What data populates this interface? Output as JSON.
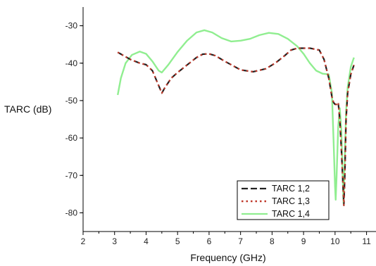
{
  "chart_data": {
    "type": "line",
    "xlabel": "Frequency (GHz)",
    "ylabel": "TARC (dB)",
    "xlim": [
      2,
      11.3
    ],
    "ylim": [
      -85,
      -25
    ],
    "xticks": [
      "2",
      "3",
      "4",
      "5",
      "6",
      "7",
      "8",
      "9",
      "10",
      "11"
    ],
    "yticks": [
      "-30",
      "-40",
      "-50",
      "-60",
      "-70",
      "-80"
    ],
    "legend_position": "bottom-right",
    "series": [
      {
        "name": "TARC 1,2",
        "color": "#222222",
        "style": "dash",
        "points": [
          [
            3.1,
            -37.1
          ],
          [
            3.5,
            -39.0
          ],
          [
            3.8,
            -40.0
          ],
          [
            4.0,
            -40.4
          ],
          [
            4.2,
            -42.0
          ],
          [
            4.4,
            -46.0
          ],
          [
            4.5,
            -48.0
          ],
          [
            4.6,
            -46.5
          ],
          [
            4.8,
            -44.0
          ],
          [
            5.0,
            -42.5
          ],
          [
            5.3,
            -40.5
          ],
          [
            5.6,
            -38.5
          ],
          [
            5.8,
            -37.6
          ],
          [
            6.0,
            -37.5
          ],
          [
            6.2,
            -38.0
          ],
          [
            6.5,
            -39.5
          ],
          [
            7.0,
            -41.8
          ],
          [
            7.4,
            -42.3
          ],
          [
            7.8,
            -41.5
          ],
          [
            8.1,
            -40.0
          ],
          [
            8.4,
            -38.0
          ],
          [
            8.6,
            -36.5
          ],
          [
            8.8,
            -36.0
          ],
          [
            9.2,
            -36.0
          ],
          [
            9.5,
            -36.5
          ],
          [
            9.65,
            -39.0
          ],
          [
            9.8,
            -44.0
          ],
          [
            9.9,
            -49.0
          ],
          [
            9.95,
            -50.5
          ],
          [
            10.0,
            -51.0
          ],
          [
            10.05,
            -51.0
          ],
          [
            10.1,
            -50.5
          ],
          [
            10.15,
            -55.0
          ],
          [
            10.2,
            -63.0
          ],
          [
            10.25,
            -72.0
          ],
          [
            10.28,
            -78.0
          ],
          [
            10.31,
            -70.0
          ],
          [
            10.35,
            -55.0
          ],
          [
            10.4,
            -48.0
          ],
          [
            10.5,
            -43.0
          ],
          [
            10.6,
            -40.5
          ]
        ]
      },
      {
        "name": "TARC 1,3",
        "color": "#c0392b",
        "style": "dot",
        "points": [
          [
            3.1,
            -37.1
          ],
          [
            3.5,
            -39.0
          ],
          [
            3.8,
            -40.0
          ],
          [
            4.0,
            -40.4
          ],
          [
            4.2,
            -42.0
          ],
          [
            4.4,
            -46.0
          ],
          [
            4.5,
            -48.0
          ],
          [
            4.6,
            -46.5
          ],
          [
            4.8,
            -44.0
          ],
          [
            5.0,
            -42.5
          ],
          [
            5.3,
            -40.5
          ],
          [
            5.6,
            -38.5
          ],
          [
            5.8,
            -37.6
          ],
          [
            6.0,
            -37.5
          ],
          [
            6.2,
            -38.0
          ],
          [
            6.5,
            -39.5
          ],
          [
            7.0,
            -41.8
          ],
          [
            7.4,
            -42.3
          ],
          [
            7.8,
            -41.5
          ],
          [
            8.1,
            -40.0
          ],
          [
            8.4,
            -38.0
          ],
          [
            8.6,
            -36.5
          ],
          [
            8.8,
            -36.0
          ],
          [
            9.2,
            -36.0
          ],
          [
            9.5,
            -36.5
          ],
          [
            9.65,
            -39.0
          ],
          [
            9.8,
            -44.0
          ],
          [
            9.9,
            -49.0
          ],
          [
            9.95,
            -50.5
          ],
          [
            10.0,
            -51.0
          ],
          [
            10.05,
            -51.0
          ],
          [
            10.1,
            -50.5
          ],
          [
            10.15,
            -55.0
          ],
          [
            10.2,
            -63.0
          ],
          [
            10.25,
            -72.0
          ],
          [
            10.28,
            -78.0
          ],
          [
            10.31,
            -70.0
          ],
          [
            10.35,
            -55.0
          ],
          [
            10.4,
            -48.0
          ],
          [
            10.5,
            -43.0
          ],
          [
            10.6,
            -40.5
          ]
        ]
      },
      {
        "name": "TARC 1,4",
        "color": "#90ee90",
        "style": "solid",
        "points": [
          [
            3.1,
            -48.5
          ],
          [
            3.2,
            -44.0
          ],
          [
            3.35,
            -40.0
          ],
          [
            3.55,
            -37.8
          ],
          [
            3.8,
            -36.9
          ],
          [
            4.0,
            -37.5
          ],
          [
            4.2,
            -39.5
          ],
          [
            4.4,
            -42.0
          ],
          [
            4.5,
            -42.5
          ],
          [
            4.7,
            -40.5
          ],
          [
            5.0,
            -37.0
          ],
          [
            5.3,
            -34.0
          ],
          [
            5.6,
            -31.8
          ],
          [
            5.85,
            -31.2
          ],
          [
            6.1,
            -31.8
          ],
          [
            6.4,
            -33.3
          ],
          [
            6.7,
            -34.2
          ],
          [
            7.0,
            -34.0
          ],
          [
            7.3,
            -33.5
          ],
          [
            7.6,
            -32.5
          ],
          [
            7.9,
            -31.9
          ],
          [
            8.2,
            -32.2
          ],
          [
            8.5,
            -33.5
          ],
          [
            8.8,
            -35.5
          ],
          [
            9.0,
            -37.5
          ],
          [
            9.2,
            -40.0
          ],
          [
            9.4,
            -42.0
          ],
          [
            9.6,
            -42.8
          ],
          [
            9.8,
            -43.0
          ],
          [
            9.9,
            -48.0
          ],
          [
            9.95,
            -60.0
          ],
          [
            10.0,
            -73.0
          ],
          [
            10.02,
            -76.5
          ],
          [
            10.05,
            -70.0
          ],
          [
            10.1,
            -57.0
          ],
          [
            10.15,
            -52.0
          ],
          [
            10.2,
            -58.0
          ],
          [
            10.24,
            -70.0
          ],
          [
            10.27,
            -77.5
          ],
          [
            10.3,
            -68.0
          ],
          [
            10.35,
            -53.0
          ],
          [
            10.4,
            -46.5
          ],
          [
            10.5,
            -41.0
          ],
          [
            10.6,
            -38.5
          ]
        ]
      }
    ]
  }
}
